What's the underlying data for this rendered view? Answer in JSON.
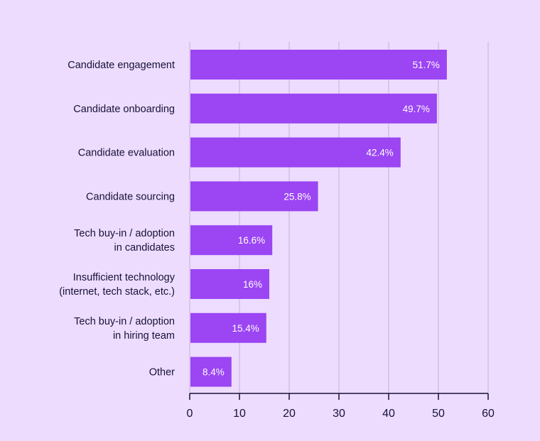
{
  "chart_data": {
    "type": "bar",
    "orientation": "horizontal",
    "categories": [
      [
        "Candidate engagement"
      ],
      [
        "Candidate onboarding"
      ],
      [
        "Candidate evaluation"
      ],
      [
        "Candidate sourcing"
      ],
      [
        "Tech buy-in / adoption",
        "in candidates"
      ],
      [
        "Insufficient technology",
        "(internet, tech stack, etc.)"
      ],
      [
        "Tech buy-in / adoption",
        "in hiring team"
      ],
      [
        "Other"
      ]
    ],
    "values": [
      51.7,
      49.7,
      42.4,
      25.8,
      16.6,
      16,
      15.4,
      8.4
    ],
    "value_labels": [
      "51.7%",
      "49.7%",
      "42.4%",
      "25.8%",
      "16.6%",
      "16%",
      "15.4%",
      "8.4%"
    ],
    "xlim": [
      0,
      60
    ],
    "xticks": [
      0,
      10,
      20,
      30,
      40,
      50,
      60
    ],
    "xtick_labels": [
      "0",
      "10",
      "20",
      "30",
      "40",
      "50",
      "60"
    ],
    "grid": true,
    "colors": {
      "bar": "#9b45f3",
      "background": "#eddcfd",
      "grid": "#c6b0da",
      "axis": "#16123a"
    }
  }
}
